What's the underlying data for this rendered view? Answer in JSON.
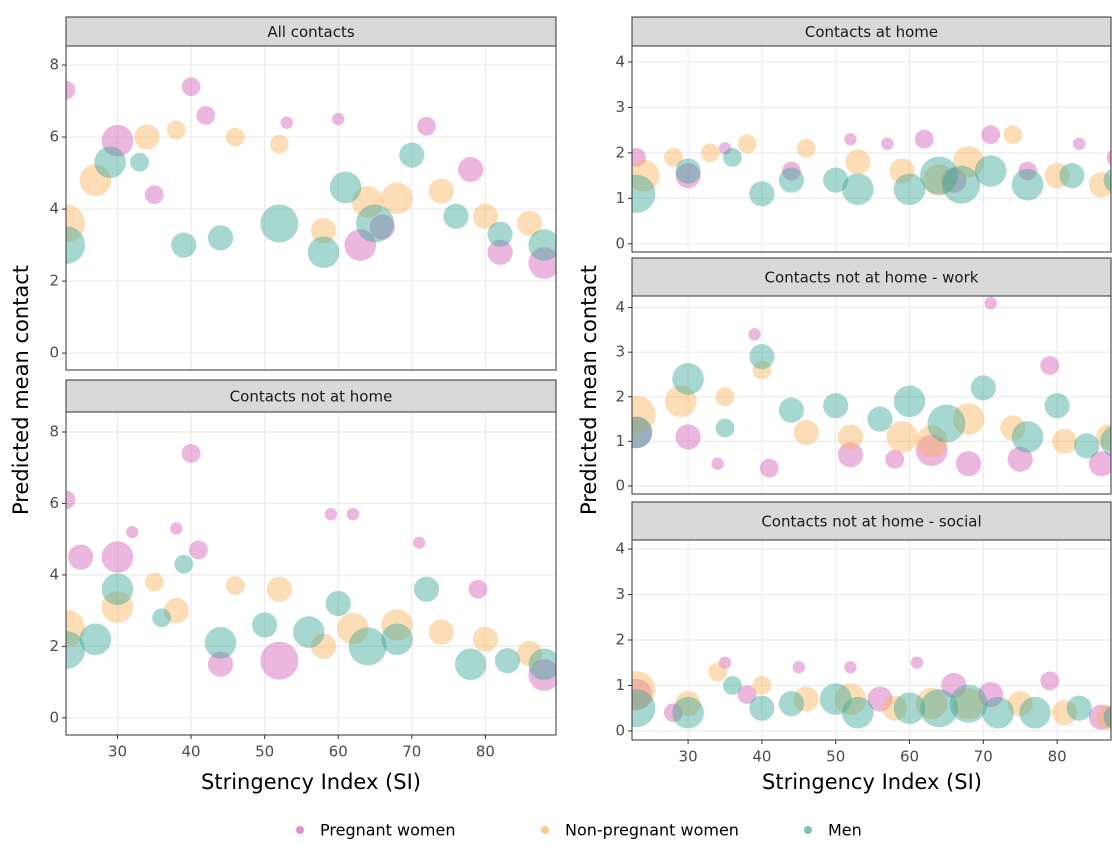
{
  "chart_data": [
    {
      "type": "scatter",
      "title": "All contacts",
      "ylabel": "Predicted mean contact",
      "xlim": [
        23,
        89.6
      ],
      "xticks": [
        30,
        40,
        50,
        60,
        70,
        80
      ],
      "ylim": [
        -0.47,
        8.53
      ],
      "yticks": [
        0,
        2,
        4,
        6,
        8
      ],
      "grid": true,
      "series": [
        {
          "name": "Pregnant women",
          "color": "#d45fb5",
          "x": [
            23,
            30,
            35,
            40,
            42,
            53,
            60,
            63,
            66,
            72,
            78,
            82,
            88
          ],
          "y": [
            7.3,
            5.9,
            4.4,
            7.4,
            6.6,
            6.4,
            6.5,
            3.0,
            3.5,
            6.3,
            5.1,
            2.8,
            2.5
          ],
          "sizes": [
            2,
            4,
            2,
            2,
            2,
            1,
            1,
            4,
            3,
            2,
            3,
            3,
            4
          ]
        },
        {
          "name": "Non-pregnant women",
          "color": "#fbb45c",
          "x": [
            23,
            27,
            34,
            38,
            46,
            52,
            58,
            64,
            68,
            74,
            80,
            86
          ],
          "y": [
            3.6,
            4.8,
            6.0,
            6.2,
            6.0,
            5.8,
            3.4,
            4.2,
            4.3,
            4.5,
            3.8,
            3.6
          ],
          "sizes": [
            5,
            4,
            3,
            2,
            2,
            2,
            3,
            4,
            4,
            3,
            3,
            3
          ]
        },
        {
          "name": "Men",
          "color": "#3aa89a",
          "x": [
            23,
            29,
            33,
            39,
            44,
            52,
            58,
            61,
            65,
            70,
            76,
            82,
            88
          ],
          "y": [
            3.0,
            5.3,
            5.3,
            3.0,
            3.2,
            3.6,
            2.8,
            4.6,
            3.6,
            5.5,
            3.8,
            3.3,
            3.0
          ],
          "sizes": [
            5,
            4,
            2,
            3,
            3,
            5,
            4,
            4,
            5,
            3,
            3,
            3,
            4
          ]
        }
      ]
    },
    {
      "type": "scatter",
      "title": "Contacts not at home",
      "xlabel": "Stringency Index (SI)",
      "xlim": [
        23,
        89.6
      ],
      "xticks": [
        30,
        40,
        50,
        60,
        70,
        80
      ],
      "ylim": [
        -0.48,
        8.56
      ],
      "yticks": [
        0,
        2,
        4,
        6,
        8
      ],
      "grid": true,
      "series": [
        {
          "name": "Pregnant women",
          "color": "#d45fb5",
          "x": [
            23,
            25,
            30,
            32,
            38,
            40,
            41,
            44,
            52,
            59,
            62,
            71,
            79,
            88
          ],
          "y": [
            6.1,
            4.5,
            4.5,
            5.2,
            5.3,
            7.4,
            4.7,
            1.5,
            1.6,
            5.7,
            5.7,
            4.9,
            3.6,
            1.2
          ],
          "sizes": [
            2,
            3,
            4,
            1,
            1,
            2,
            2,
            3,
            5,
            1,
            1,
            1,
            2,
            4
          ]
        },
        {
          "name": "Non-pregnant women",
          "color": "#fbb45c",
          "x": [
            23,
            30,
            35,
            38,
            46,
            52,
            58,
            62,
            68,
            74,
            80,
            86
          ],
          "y": [
            2.5,
            3.1,
            3.8,
            3.0,
            3.7,
            3.6,
            2.0,
            2.5,
            2.6,
            2.4,
            2.2,
            1.8
          ],
          "sizes": [
            5,
            4,
            2,
            3,
            2,
            3,
            3,
            4,
            4,
            3,
            3,
            3
          ]
        },
        {
          "name": "Men",
          "color": "#3aa89a",
          "x": [
            23,
            27,
            30,
            36,
            39,
            44,
            50,
            56,
            60,
            64,
            68,
            72,
            78,
            83,
            88
          ],
          "y": [
            1.9,
            2.2,
            3.6,
            2.8,
            4.3,
            2.1,
            2.6,
            2.4,
            3.2,
            2.0,
            2.2,
            3.6,
            1.5,
            1.6,
            1.5
          ],
          "sizes": [
            5,
            4,
            4,
            2,
            2,
            4,
            3,
            4,
            3,
            5,
            4,
            3,
            4,
            3,
            4
          ]
        }
      ]
    },
    {
      "type": "scatter",
      "title": "Contacts at home",
      "ylabel": "Predicted mean contact",
      "xlim": [
        22.4,
        87.3
      ],
      "xticks": [
        30,
        40,
        50,
        60,
        70,
        80
      ],
      "ylim": [
        -0.18,
        4.35
      ],
      "yticks": [
        0,
        1,
        2,
        3,
        4
      ],
      "grid": true,
      "series": [
        {
          "name": "Pregnant women",
          "color": "#d45fb5",
          "x": [
            23,
            30,
            35,
            44,
            52,
            57,
            62,
            66,
            71,
            76,
            83,
            88
          ],
          "y": [
            1.9,
            1.5,
            2.1,
            1.6,
            2.3,
            2.2,
            2.3,
            1.4,
            2.4,
            1.6,
            2.2,
            1.9
          ],
          "sizes": [
            2,
            3,
            1,
            2,
            1,
            1,
            2,
            3,
            2,
            2,
            1,
            2
          ]
        },
        {
          "name": "Non-pregnant women",
          "color": "#fbb45c",
          "x": [
            24,
            28,
            33,
            38,
            46,
            53,
            59,
            64,
            68,
            74,
            80,
            86
          ],
          "y": [
            1.5,
            1.9,
            2.0,
            2.2,
            2.1,
            1.8,
            1.6,
            1.4,
            1.8,
            2.4,
            1.5,
            1.3
          ],
          "sizes": [
            4,
            2,
            2,
            2,
            2,
            3,
            3,
            4,
            4,
            2,
            3,
            3
          ]
        },
        {
          "name": "Men",
          "color": "#3aa89a",
          "x": [
            23,
            30,
            36,
            40,
            44,
            50,
            53,
            60,
            64,
            67,
            71,
            76,
            82,
            88
          ],
          "y": [
            1.1,
            1.6,
            1.9,
            1.1,
            1.4,
            1.4,
            1.2,
            1.2,
            1.5,
            1.3,
            1.6,
            1.3,
            1.5,
            1.4
          ],
          "sizes": [
            5,
            3,
            2,
            3,
            3,
            3,
            4,
            4,
            5,
            5,
            4,
            4,
            3,
            3
          ]
        }
      ]
    },
    {
      "type": "scatter",
      "title": "Contacts not at home - work",
      "xlim": [
        22.4,
        87.3
      ],
      "xticks": [
        30,
        40,
        50,
        60,
        70,
        80
      ],
      "ylim": [
        -0.18,
        4.26
      ],
      "yticks": [
        0,
        1,
        2,
        3,
        4
      ],
      "grid": true,
      "series": [
        {
          "name": "Pregnant women",
          "color": "#d45fb5",
          "x": [
            23,
            30,
            34,
            39,
            41,
            52,
            58,
            63,
            68,
            71,
            75,
            79,
            86
          ],
          "y": [
            1.2,
            1.1,
            0.5,
            3.4,
            0.4,
            0.7,
            0.6,
            0.8,
            0.5,
            4.1,
            0.6,
            2.7,
            0.5
          ],
          "sizes": [
            4,
            3,
            1,
            1,
            2,
            3,
            2,
            4,
            3,
            1,
            3,
            2,
            3
          ]
        },
        {
          "name": "Non-pregnant women",
          "color": "#fbb45c",
          "x": [
            23,
            29,
            35,
            40,
            46,
            52,
            59,
            63,
            68,
            74,
            81,
            87
          ],
          "y": [
            1.6,
            1.9,
            2.0,
            2.6,
            1.2,
            1.1,
            1.1,
            1.0,
            1.5,
            1.3,
            1.0,
            1.1
          ],
          "sizes": [
            5,
            4,
            2,
            2,
            3,
            3,
            4,
            4,
            4,
            3,
            3,
            3
          ]
        },
        {
          "name": "Men",
          "color": "#3aa89a",
          "x": [
            23,
            30,
            35,
            40,
            44,
            50,
            56,
            60,
            65,
            70,
            76,
            80,
            84,
            88
          ],
          "y": [
            1.2,
            2.4,
            1.3,
            2.9,
            1.7,
            1.8,
            1.5,
            1.9,
            1.4,
            2.2,
            1.1,
            1.8,
            0.9,
            1.0
          ],
          "sizes": [
            4,
            4,
            2,
            3,
            3,
            3,
            3,
            4,
            5,
            3,
            4,
            3,
            3,
            4
          ]
        }
      ]
    },
    {
      "type": "scatter",
      "title": "Contacts not at home - social",
      "xlabel": "Stringency Index (SI)",
      "xlim": [
        22.4,
        87.3
      ],
      "xticks": [
        30,
        40,
        50,
        60,
        70,
        80
      ],
      "ylim": [
        -0.2,
        4.2
      ],
      "yticks": [
        0,
        1,
        2,
        3,
        4
      ],
      "grid": true,
      "series": [
        {
          "name": "Pregnant women",
          "color": "#d45fb5",
          "x": [
            23,
            28,
            35,
            38,
            45,
            52,
            56,
            61,
            66,
            71,
            79,
            86
          ],
          "y": [
            0.8,
            0.4,
            1.5,
            0.8,
            1.4,
            1.4,
            0.7,
            1.5,
            1.0,
            0.8,
            1.1,
            0.3
          ],
          "sizes": [
            4,
            2,
            1,
            2,
            1,
            1,
            3,
            1,
            3,
            3,
            2,
            3
          ]
        },
        {
          "name": "Non-pregnant women",
          "color": "#fbb45c",
          "x": [
            23,
            30,
            34,
            40,
            46,
            52,
            58,
            63,
            68,
            75,
            81,
            87
          ],
          "y": [
            0.9,
            0.6,
            1.3,
            1.0,
            0.7,
            0.7,
            0.5,
            0.6,
            0.6,
            0.6,
            0.4,
            0.3
          ],
          "sizes": [
            5,
            3,
            2,
            2,
            3,
            4,
            3,
            4,
            4,
            3,
            3,
            3
          ]
        },
        {
          "name": "Men",
          "color": "#3aa89a",
          "x": [
            23,
            30,
            36,
            40,
            44,
            50,
            53,
            60,
            64,
            68,
            72,
            77,
            83,
            88
          ],
          "y": [
            0.5,
            0.4,
            1.0,
            0.5,
            0.6,
            0.7,
            0.4,
            0.5,
            0.5,
            0.6,
            0.4,
            0.4,
            0.5,
            0.3
          ],
          "sizes": [
            5,
            4,
            2,
            3,
            3,
            4,
            4,
            4,
            5,
            5,
            4,
            4,
            3,
            3
          ]
        }
      ]
    }
  ]
}
